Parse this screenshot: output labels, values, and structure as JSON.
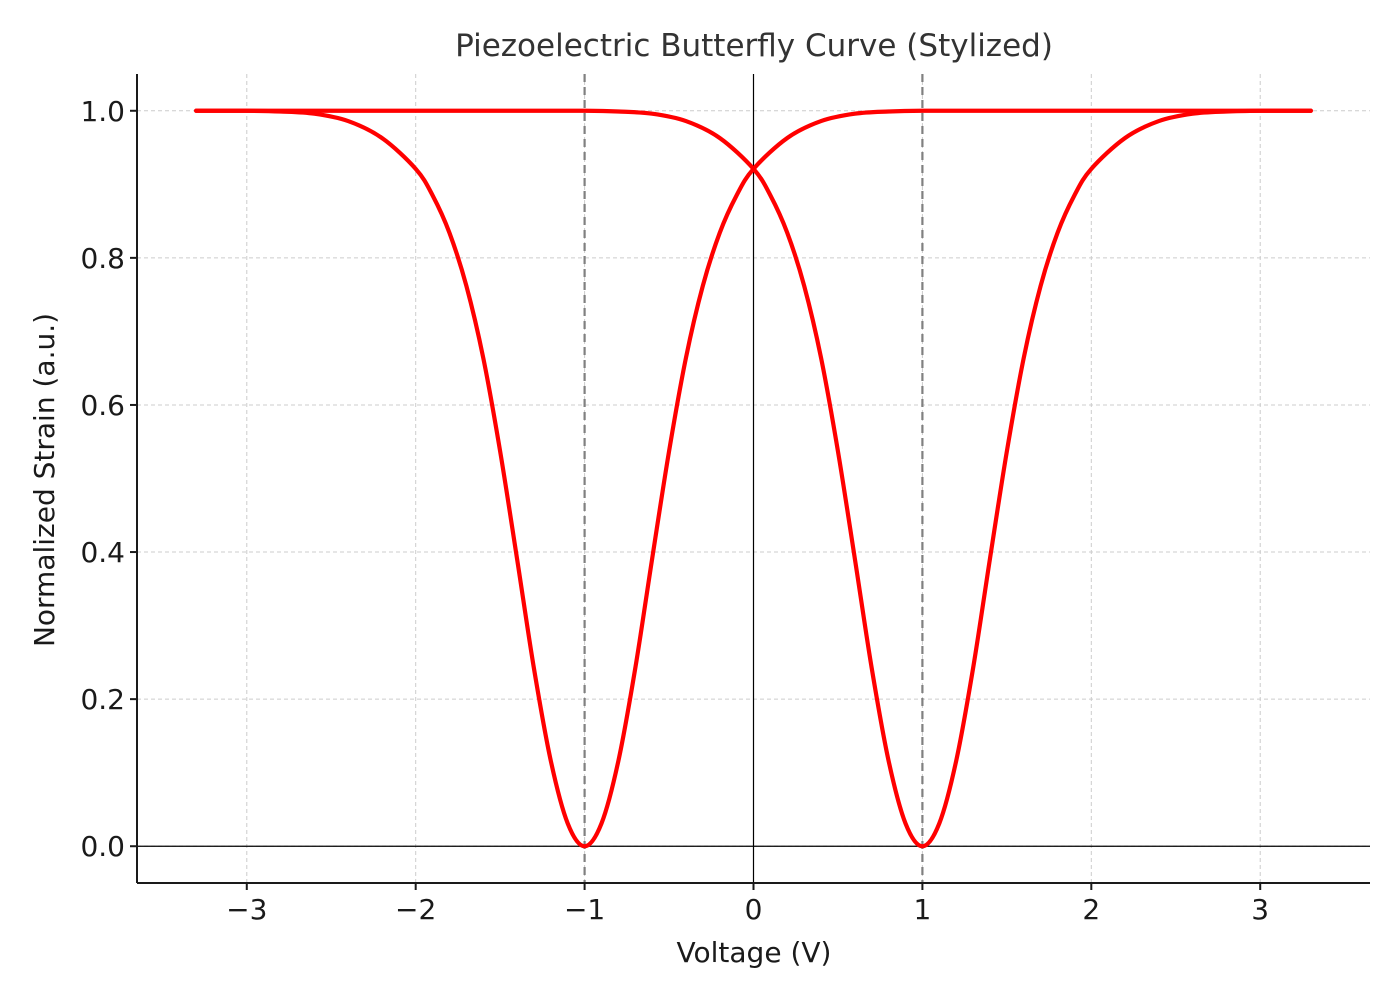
{
  "chart_data": {
    "type": "line",
    "title": "Piezoelectric Butterfly Curve (Stylized)",
    "xlabel": "Voltage (V)",
    "ylabel": "Normalized Strain (a.u.)",
    "xlim": [
      -3.65,
      3.65
    ],
    "ylim": [
      -0.05,
      1.05
    ],
    "x_ticks": [
      -3,
      -2,
      -1,
      0,
      1,
      2,
      3
    ],
    "x_tick_labels": [
      "−3",
      "−2",
      "−1",
      "0",
      "1",
      "2",
      "3"
    ],
    "y_ticks": [
      0.0,
      0.2,
      0.4,
      0.6,
      0.8,
      1.0
    ],
    "y_tick_labels": [
      "0.0",
      "0.2",
      "0.4",
      "0.6",
      "0.8",
      "1.0"
    ],
    "grid": true,
    "reference_lines": [
      {
        "orientation": "vertical",
        "x": -1,
        "style": "dashed"
      },
      {
        "orientation": "vertical",
        "x": 1,
        "style": "dashed"
      },
      {
        "orientation": "vertical",
        "x": 0,
        "style": "solid"
      },
      {
        "orientation": "horizontal",
        "y": 0,
        "style": "solid"
      }
    ],
    "series": [
      {
        "color": "#ff0000",
        "x": [
          -3.3,
          -3.0,
          -2.8,
          -2.6,
          -2.4,
          -2.2,
          -2.0,
          -1.9,
          -1.8,
          -1.7,
          -1.6,
          -1.5,
          -1.4,
          -1.3,
          -1.2,
          -1.1,
          -1.0,
          -0.9,
          -0.8,
          -0.7,
          -0.6,
          -0.5,
          -0.4,
          -0.3,
          -0.2,
          -0.1,
          0.0,
          0.2,
          0.4,
          0.6,
          0.8,
          1.0,
          1.5,
          2.0,
          2.5,
          3.0,
          3.3
        ],
        "y": [
          1.0,
          1.0,
          0.999,
          0.996,
          0.986,
          0.963,
          0.921,
          0.885,
          0.834,
          0.762,
          0.664,
          0.537,
          0.391,
          0.242,
          0.116,
          0.031,
          0.0,
          0.031,
          0.116,
          0.242,
          0.391,
          0.537,
          0.664,
          0.762,
          0.834,
          0.885,
          0.921,
          0.963,
          0.986,
          0.996,
          0.999,
          1.0,
          1.0,
          1.0,
          1.0,
          1.0,
          1.0
        ]
      },
      {
        "color": "#ff0000",
        "x": [
          -3.3,
          -3.0,
          -2.5,
          -2.0,
          -1.5,
          -1.0,
          -0.8,
          -0.6,
          -0.4,
          -0.2,
          0.0,
          0.1,
          0.2,
          0.3,
          0.4,
          0.5,
          0.6,
          0.7,
          0.8,
          0.9,
          1.0,
          1.1,
          1.2,
          1.3,
          1.4,
          1.5,
          1.6,
          1.7,
          1.8,
          1.9,
          2.0,
          2.2,
          2.4,
          2.6,
          2.8,
          3.0,
          3.3
        ],
        "y": [
          1.0,
          1.0,
          1.0,
          1.0,
          1.0,
          1.0,
          0.999,
          0.996,
          0.986,
          0.963,
          0.921,
          0.885,
          0.834,
          0.762,
          0.664,
          0.537,
          0.391,
          0.242,
          0.116,
          0.031,
          0.0,
          0.031,
          0.116,
          0.242,
          0.391,
          0.537,
          0.664,
          0.762,
          0.834,
          0.885,
          0.921,
          0.963,
          0.986,
          0.996,
          0.999,
          1.0,
          1.0
        ]
      }
    ],
    "colors": {
      "series": "#ff0000",
      "reference_dashed": "#808080",
      "axis": "#1a1a1a",
      "grid": "#cccccc"
    }
  }
}
